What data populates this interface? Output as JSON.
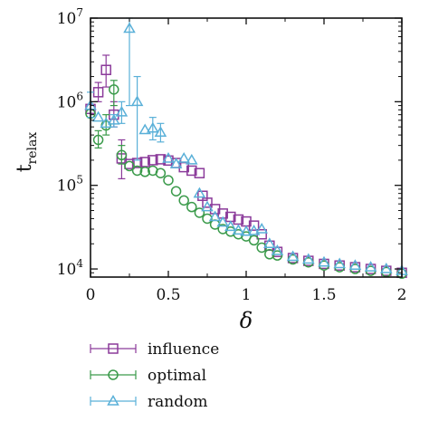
{
  "chart_data": {
    "type": "scatter",
    "xlabel": "δ",
    "ylabel": {
      "main": "t",
      "sub": "relax"
    },
    "xlim": [
      0,
      2
    ],
    "ylim": [
      8000,
      10000000
    ],
    "yscale": "log",
    "x_ticks": [
      0,
      0.5,
      1,
      1.5,
      2
    ],
    "x_tick_labels": [
      "0",
      "0.5",
      "1",
      "1.5",
      "2"
    ],
    "y_ticks": [
      10000,
      100000,
      1000000,
      10000000
    ],
    "y_tick_labels": [
      {
        "base": "10",
        "exp": "4"
      },
      {
        "base": "10",
        "exp": "5"
      },
      {
        "base": "10",
        "exp": "6"
      },
      {
        "base": "10",
        "exp": "7"
      }
    ],
    "legend_position": "bottom",
    "series": [
      {
        "name": "influence",
        "marker": "square",
        "color": "#8b3a9a",
        "points": [
          {
            "x": 0.0,
            "y": 820000
          },
          {
            "x": 0.05,
            "y": 1300000,
            "err": [
              1000000,
              1700000
            ]
          },
          {
            "x": 0.1,
            "y": 2400000,
            "err": [
              1500000,
              3600000
            ]
          },
          {
            "x": 0.15,
            "y": 700000,
            "err": [
              500000,
              1000000
            ]
          },
          {
            "x": 0.2,
            "y": 210000,
            "err": [
              120000,
              350000
            ]
          },
          {
            "x": 0.25,
            "y": 180000
          },
          {
            "x": 0.3,
            "y": 185000
          },
          {
            "x": 0.35,
            "y": 190000
          },
          {
            "x": 0.4,
            "y": 200000
          },
          {
            "x": 0.45,
            "y": 205000
          },
          {
            "x": 0.5,
            "y": 198000
          },
          {
            "x": 0.55,
            "y": 185000
          },
          {
            "x": 0.6,
            "y": 165000
          },
          {
            "x": 0.65,
            "y": 150000
          },
          {
            "x": 0.7,
            "y": 140000
          },
          {
            "x": 0.72,
            "y": 75000
          },
          {
            "x": 0.75,
            "y": 62000
          },
          {
            "x": 0.8,
            "y": 52000
          },
          {
            "x": 0.85,
            "y": 46000
          },
          {
            "x": 0.9,
            "y": 42000
          },
          {
            "x": 0.95,
            "y": 39000
          },
          {
            "x": 1.0,
            "y": 37000
          },
          {
            "x": 1.05,
            "y": 33000
          },
          {
            "x": 1.1,
            "y": 26000
          },
          {
            "x": 1.15,
            "y": 19000
          },
          {
            "x": 1.2,
            "y": 16000
          },
          {
            "x": 1.3,
            "y": 13500
          },
          {
            "x": 1.4,
            "y": 12500
          },
          {
            "x": 1.5,
            "y": 11500
          },
          {
            "x": 1.6,
            "y": 11000
          },
          {
            "x": 1.7,
            "y": 10500
          },
          {
            "x": 1.8,
            "y": 10000
          },
          {
            "x": 1.9,
            "y": 9500
          },
          {
            "x": 2.0,
            "y": 9000
          }
        ]
      },
      {
        "name": "optimal",
        "marker": "circle",
        "color": "#3a9a4a",
        "points": [
          {
            "x": 0.0,
            "y": 720000
          },
          {
            "x": 0.05,
            "y": 350000,
            "err": [
              280000,
              450000
            ]
          },
          {
            "x": 0.1,
            "y": 520000,
            "err": [
              400000,
              700000
            ]
          },
          {
            "x": 0.15,
            "y": 1400000,
            "err": [
              900000,
              1800000
            ]
          },
          {
            "x": 0.2,
            "y": 230000,
            "err": [
              180000,
              300000
            ]
          },
          {
            "x": 0.25,
            "y": 170000
          },
          {
            "x": 0.3,
            "y": 150000
          },
          {
            "x": 0.35,
            "y": 145000
          },
          {
            "x": 0.4,
            "y": 150000
          },
          {
            "x": 0.45,
            "y": 140000
          },
          {
            "x": 0.5,
            "y": 115000
          },
          {
            "x": 0.55,
            "y": 85000
          },
          {
            "x": 0.6,
            "y": 66000
          },
          {
            "x": 0.65,
            "y": 55000
          },
          {
            "x": 0.7,
            "y": 47000
          },
          {
            "x": 0.75,
            "y": 40000
          },
          {
            "x": 0.8,
            "y": 34000
          },
          {
            "x": 0.85,
            "y": 30000
          },
          {
            "x": 0.9,
            "y": 28000
          },
          {
            "x": 0.95,
            "y": 26000
          },
          {
            "x": 1.0,
            "y": 24500
          },
          {
            "x": 1.05,
            "y": 22000
          },
          {
            "x": 1.1,
            "y": 18000
          },
          {
            "x": 1.15,
            "y": 15000
          },
          {
            "x": 1.2,
            "y": 14500
          },
          {
            "x": 1.3,
            "y": 13000
          },
          {
            "x": 1.4,
            "y": 12000
          },
          {
            "x": 1.5,
            "y": 11000
          },
          {
            "x": 1.6,
            "y": 10500
          },
          {
            "x": 1.7,
            "y": 10000
          },
          {
            "x": 1.8,
            "y": 9500
          },
          {
            "x": 1.9,
            "y": 9200
          },
          {
            "x": 2.0,
            "y": 8800
          }
        ]
      },
      {
        "name": "random",
        "marker": "triangle",
        "color": "#5ab0d8",
        "points": [
          {
            "x": 0.0,
            "y": 900000,
            "err": [
              650000,
              1300000
            ]
          },
          {
            "x": 0.05,
            "y": 650000
          },
          {
            "x": 0.1,
            "y": 550000
          },
          {
            "x": 0.15,
            "y": 600000,
            "err": [
              500000,
              700000
            ]
          },
          {
            "x": 0.2,
            "y": 750000,
            "err": [
              550000,
              1000000
            ]
          },
          {
            "x": 0.25,
            "y": 7500000,
            "err": [
              900000,
              10000000
            ]
          },
          {
            "x": 0.3,
            "y": 1000000,
            "err": [
              200000,
              2000000
            ]
          },
          {
            "x": 0.35,
            "y": 460000
          },
          {
            "x": 0.4,
            "y": 480000,
            "err": [
              350000,
              650000
            ]
          },
          {
            "x": 0.45,
            "y": 430000,
            "err": [
              330000,
              550000
            ]
          },
          {
            "x": 0.5,
            "y": 210000
          },
          {
            "x": 0.55,
            "y": 180000
          },
          {
            "x": 0.6,
            "y": 210000
          },
          {
            "x": 0.65,
            "y": 200000
          },
          {
            "x": 0.7,
            "y": 80000
          },
          {
            "x": 0.75,
            "y": 55000
          },
          {
            "x": 0.8,
            "y": 42000
          },
          {
            "x": 0.85,
            "y": 36000
          },
          {
            "x": 0.9,
            "y": 32000
          },
          {
            "x": 0.95,
            "y": 29000
          },
          {
            "x": 1.0,
            "y": 28000
          },
          {
            "x": 1.05,
            "y": 28500
          },
          {
            "x": 1.1,
            "y": 30000
          },
          {
            "x": 1.15,
            "y": 20000
          },
          {
            "x": 1.2,
            "y": 16500
          },
          {
            "x": 1.3,
            "y": 14000
          },
          {
            "x": 1.4,
            "y": 13000
          },
          {
            "x": 1.5,
            "y": 12000
          },
          {
            "x": 1.6,
            "y": 11500
          },
          {
            "x": 1.7,
            "y": 11000
          },
          {
            "x": 1.8,
            "y": 10500
          },
          {
            "x": 1.9,
            "y": 10000
          },
          {
            "x": 2.0,
            "y": 9500
          }
        ]
      }
    ]
  }
}
